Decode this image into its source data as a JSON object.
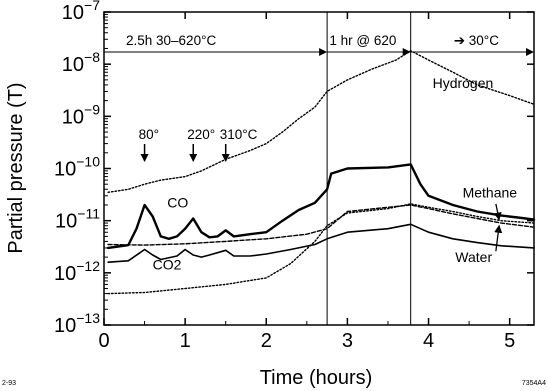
{
  "chart_data": {
    "type": "line",
    "xlabel": "Time  (hours)",
    "ylabel": "Partial pressure  (T)",
    "xlim": [
      0,
      5.3
    ],
    "ylim": [
      1e-13,
      1e-07
    ],
    "yscale": "log",
    "xticks": [
      0,
      1,
      2,
      3,
      4,
      5
    ],
    "ytick_exponents": [
      -7,
      -8,
      -9,
      -10,
      -11,
      -12,
      -13
    ],
    "ytick_base": "10",
    "grid": false,
    "phases": [
      {
        "label": "2.5h  30–620°C",
        "x_start": 0,
        "x_end": 2.75
      },
      {
        "label": "1 hr @ 620",
        "x_start": 2.75,
        "x_end": 3.78
      },
      {
        "label": "30°C",
        "x_start": 3.78,
        "x_end": 5.3
      }
    ],
    "phase_arrow_glyph": "➔",
    "phase_boundaries": [
      2.75,
      3.78
    ],
    "temperature_markers": [
      {
        "label": "80°",
        "x": 0.5
      },
      {
        "label": "220°",
        "x": 1.1
      },
      {
        "label": "310°C",
        "x": 1.5
      }
    ],
    "series": [
      {
        "name": "Hydrogen",
        "style": "dotted",
        "x": [
          0.05,
          0.3,
          0.5,
          0.7,
          1.0,
          1.2,
          1.5,
          1.8,
          2.0,
          2.2,
          2.4,
          2.6,
          2.75,
          3.0,
          3.3,
          3.6,
          3.78,
          4.0,
          4.3,
          4.6,
          5.0,
          5.3
        ],
        "y": [
          3.5e-11,
          4e-11,
          5e-11,
          6e-11,
          7e-11,
          9e-11,
          1.5e-10,
          2.2e-10,
          3e-10,
          5e-10,
          9e-10,
          1.5e-09,
          3e-09,
          5e-09,
          8e-09,
          1.2e-08,
          1.8e-08,
          1.2e-08,
          7e-09,
          4e-09,
          2.5e-09,
          1.7e-09
        ]
      },
      {
        "name": "CO",
        "style": "solid-thick",
        "x": [
          0.05,
          0.3,
          0.4,
          0.5,
          0.6,
          0.7,
          0.8,
          0.9,
          1.0,
          1.1,
          1.2,
          1.3,
          1.4,
          1.5,
          1.6,
          1.8,
          2.0,
          2.2,
          2.4,
          2.6,
          2.75,
          2.8,
          3.0,
          3.5,
          3.78,
          3.9,
          4.0,
          4.3,
          4.6,
          4.9,
          5.1,
          5.3
        ],
        "y": [
          3e-12,
          3.4e-12,
          7e-12,
          2e-11,
          1.2e-11,
          5e-12,
          4.5e-12,
          5e-12,
          7e-12,
          1.1e-11,
          6e-12,
          4.8e-12,
          5e-12,
          6.5e-12,
          5e-12,
          5.5e-12,
          6e-12,
          1e-11,
          1.6e-11,
          2.2e-11,
          4e-11,
          8e-11,
          1e-10,
          1.05e-10,
          1.2e-10,
          5e-11,
          3e-11,
          2e-11,
          1.5e-11,
          1.25e-11,
          1.15e-11,
          1.05e-11
        ]
      },
      {
        "name": "Methane",
        "style": "dashed",
        "x": [
          0.05,
          0.5,
          1.0,
          1.5,
          2.0,
          2.5,
          2.75,
          3.0,
          3.5,
          3.78,
          4.0,
          4.3,
          4.6,
          4.9,
          5.3
        ],
        "y": [
          3.5e-12,
          3.4e-12,
          3.6e-12,
          4e-12,
          4.5e-12,
          5.5e-12,
          7e-12,
          1.5e-11,
          1.8e-11,
          2e-11,
          1.7e-11,
          1.35e-11,
          1.1e-11,
          9e-12,
          7.5e-12
        ]
      },
      {
        "name": "Water",
        "style": "dotted",
        "x": [
          0.05,
          0.5,
          1.0,
          1.5,
          2.0,
          2.3,
          2.6,
          2.75,
          3.0,
          3.5,
          3.78,
          4.0,
          4.3,
          4.6,
          4.9,
          5.3
        ],
        "y": [
          4e-13,
          4.2e-13,
          5e-13,
          6e-13,
          8e-13,
          1.5e-12,
          4e-12,
          8e-12,
          1.4e-11,
          1.7e-11,
          2.1e-11,
          1.8e-11,
          1.5e-11,
          1.2e-11,
          1e-11,
          9e-12
        ]
      },
      {
        "name": "CO2",
        "style": "solid",
        "x": [
          0.05,
          0.3,
          0.5,
          0.6,
          0.7,
          0.9,
          1.0,
          1.1,
          1.2,
          1.3,
          1.5,
          1.6,
          1.8,
          2.0,
          2.3,
          2.6,
          2.75,
          3.0,
          3.5,
          3.78,
          4.0,
          4.3,
          4.6,
          4.9,
          5.3
        ],
        "y": [
          1.6e-12,
          1.7e-12,
          2.8e-12,
          2.2e-12,
          1.8e-12,
          2.1e-12,
          2.8e-12,
          2.2e-12,
          2e-12,
          2.2e-12,
          2.7e-12,
          2.1e-12,
          2.1e-12,
          2.3e-12,
          2.8e-12,
          3.5e-12,
          4.5e-12,
          6e-12,
          7e-12,
          8.5e-12,
          6e-12,
          4.5e-12,
          3.8e-12,
          3.3e-12,
          3e-12
        ]
      }
    ],
    "series_labels": {
      "Hydrogen": "Hydrogen",
      "CO": "CO",
      "Methane": "Methane",
      "Water": "Water",
      "CO2": "CO2"
    },
    "footnotes": {
      "left": "2-93",
      "right": "7354A4"
    }
  }
}
